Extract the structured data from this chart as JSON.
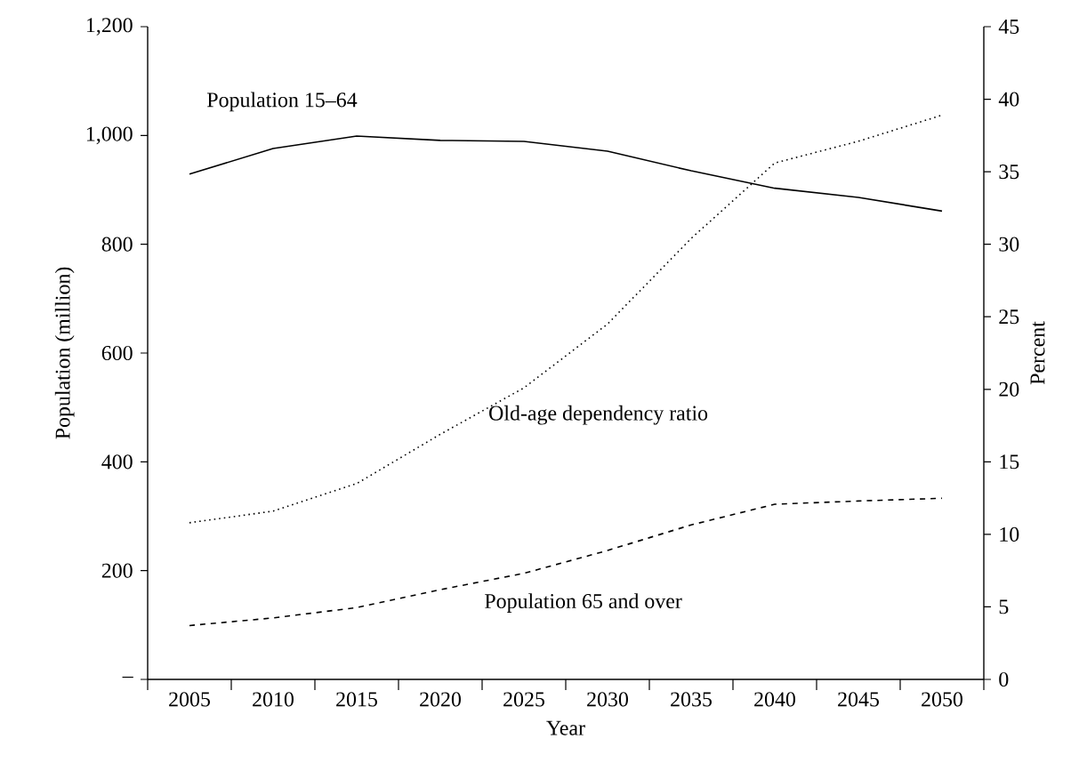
{
  "chart_data": {
    "type": "line",
    "xlabel": "Year",
    "ylabel": "Population (million)",
    "y2label": "Percent",
    "categories": [
      "2005",
      "2010",
      "2015",
      "2020",
      "2025",
      "2030",
      "2035",
      "2040",
      "2045",
      "2050"
    ],
    "series": [
      {
        "name": "Population 15–64",
        "color": "#000000",
        "line_style": "solid",
        "values": [
          929,
          976,
          999,
          991,
          989,
          971,
          935,
          903,
          886,
          861
        ]
      },
      {
        "name": "Population 65 and over",
        "color": "#000000",
        "line_style": "dashed",
        "values": [
          99,
          113,
          132,
          165,
          195,
          237,
          284,
          322,
          328,
          333
        ]
      },
      {
        "name": "Old-age dependency ratio",
        "color": "#000000",
        "line_style": "dotted",
        "axis": "y2",
        "values": [
          10.8,
          11.6,
          13.5,
          16.9,
          20.1,
          24.5,
          30.4,
          35.6,
          37.1,
          38.9
        ]
      }
    ],
    "ylim": [
      0,
      1200
    ],
    "yticks": [
      {
        "value": 0,
        "label": "–"
      },
      200,
      400,
      600,
      800,
      {
        "value": 1000,
        "label": "1,000"
      },
      {
        "value": 1200,
        "label": "1,200"
      }
    ],
    "y2lim": [
      0,
      45
    ],
    "y2ticks": [
      0,
      5,
      10,
      15,
      20,
      25,
      30,
      35,
      40,
      45
    ],
    "grid": false
  }
}
